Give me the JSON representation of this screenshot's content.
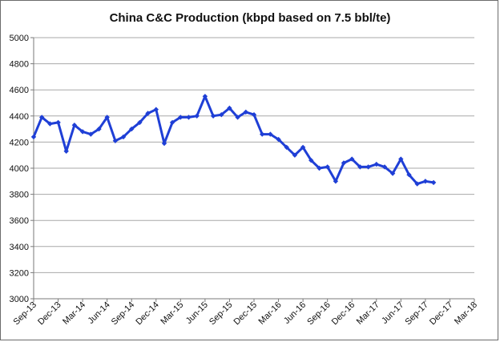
{
  "chart_data": {
    "type": "line",
    "title": "China C&C Production (kbpd based on 7.5 bbl/te)",
    "xlabel": "",
    "ylabel": "",
    "ylim": [
      3000,
      5000
    ],
    "yticks": [
      3000,
      3200,
      3400,
      3600,
      3800,
      4000,
      4200,
      4400,
      4600,
      4800,
      5000
    ],
    "xticks": [
      "Sep-13",
      "Dec-13",
      "Mar-14",
      "Jun-14",
      "Sep-14",
      "Dec-14",
      "Mar-15",
      "Jun-15",
      "Sep-15",
      "Dec-15",
      "Mar-16",
      "Jun-16",
      "Sep-16",
      "Dec-16",
      "Mar-17",
      "Jun-17",
      "Sep-17",
      "Dec-17",
      "Mar-18"
    ],
    "grid": "horizontal",
    "legend": "none",
    "color": "#1f3fd6",
    "series": [
      {
        "values": [
          4240,
          4390,
          4340,
          4350,
          4130,
          4330,
          4280,
          4260,
          4300,
          4390,
          4210,
          4240,
          4300,
          4350,
          4420,
          4450,
          4190,
          4350,
          4390,
          4390,
          4400,
          4550,
          4400,
          4410,
          4460,
          4390,
          4430,
          4410,
          4260,
          4260,
          4220,
          4160,
          4100,
          4160,
          4060,
          4000,
          4010,
          3900,
          4040,
          4070,
          4010,
          4010,
          4030,
          4010,
          3960,
          4070,
          3950,
          3880,
          3900,
          3890
        ]
      }
    ]
  }
}
